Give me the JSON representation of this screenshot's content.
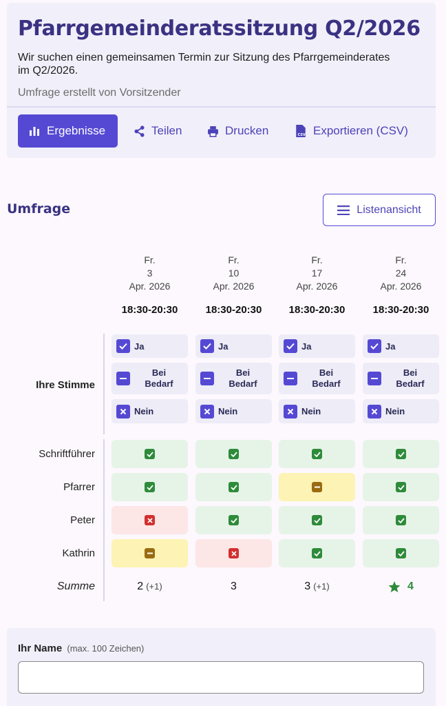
{
  "poll": {
    "title": "Pfarrgemeinderatssitzung Q2/2026",
    "description": "Wir suchen einen gemeinsamen Termin zur Sitzung des Pfarrgemeinderates im Q2/2026.",
    "creator": "Umfrage erstellt von Vorsitzender"
  },
  "toolbar": {
    "results_label": "Ergebnisse",
    "share_label": "Teilen",
    "print_label": "Drucken",
    "export_label": "Exportieren (CSV)"
  },
  "section": {
    "title": "Umfrage",
    "list_view_label": "Listenansicht"
  },
  "columns": [
    {
      "weekday": "Fr.",
      "day": "3",
      "month": "Apr. 2026",
      "time": "18:30-20:30"
    },
    {
      "weekday": "Fr.",
      "day": "10",
      "month": "Apr. 2026",
      "time": "18:30-20:30"
    },
    {
      "weekday": "Fr.",
      "day": "17",
      "month": "Apr. 2026",
      "time": "18:30-20:30"
    },
    {
      "weekday": "Fr.",
      "day": "24",
      "month": "Apr. 2026",
      "time": "18:30-20:30"
    }
  ],
  "vote": {
    "label": "Ihre Stimme",
    "options": {
      "yes": "Ja",
      "maybe_line1": "Bei",
      "maybe_line2": "Bedarf",
      "no": "Nein"
    }
  },
  "participants": [
    {
      "name": "Schriftführer",
      "votes": [
        "yes",
        "yes",
        "yes",
        "yes"
      ]
    },
    {
      "name": "Pfarrer",
      "votes": [
        "yes",
        "yes",
        "maybe",
        "yes"
      ]
    },
    {
      "name": "Peter",
      "votes": [
        "no",
        "yes",
        "yes",
        "yes"
      ]
    },
    {
      "name": "Kathrin",
      "votes": [
        "maybe",
        "no",
        "yes",
        "yes"
      ]
    }
  ],
  "summary": {
    "label": "Summe",
    "totals": [
      {
        "count": "2",
        "extra": "(+1)"
      },
      {
        "count": "3",
        "extra": ""
      },
      {
        "count": "3",
        "extra": "(+1)"
      },
      {
        "count": "4",
        "extra": "",
        "best": true
      }
    ]
  },
  "name_form": {
    "label": "Ihr Name",
    "hint": "(max. 100 Zeichen)",
    "value": ""
  },
  "colors": {
    "primary": "#5549d4",
    "title": "#3a3282",
    "yes": "#2e8b3a",
    "maybe": "#9a6b10",
    "no": "#d32f2f"
  },
  "icons": {
    "results": "bar-chart-icon",
    "share": "share-icon",
    "print": "printer-icon",
    "export": "csv-file-icon",
    "list_view": "list-icon",
    "best": "star-icon"
  }
}
